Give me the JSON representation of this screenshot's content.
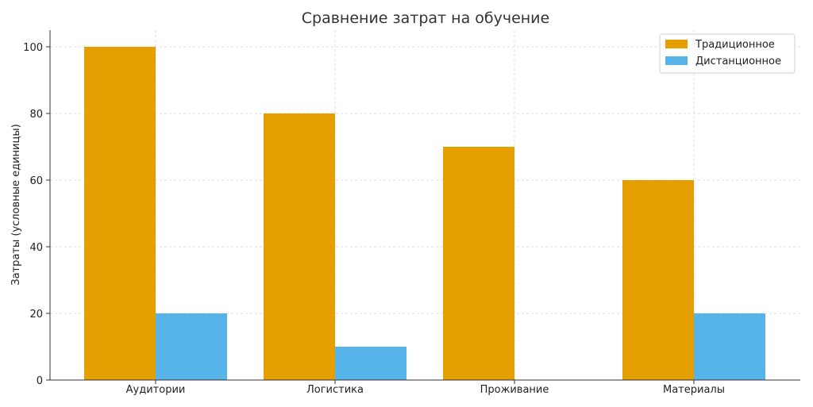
{
  "chart_data": {
    "type": "bar",
    "title": "Сравнение затрат на обучение",
    "xlabel": "",
    "ylabel": "Затраты (условные единицы)",
    "categories": [
      "Аудитории",
      "Логистика",
      "Проживание",
      "Материалы"
    ],
    "series": [
      {
        "name": "Традиционное",
        "color": "#E69F00",
        "values": [
          100,
          80,
          70,
          60
        ]
      },
      {
        "name": "Дистанционное",
        "color": "#56B4E9",
        "values": [
          20,
          10,
          0,
          20
        ]
      }
    ],
    "ylim": [
      0,
      105
    ],
    "yticks": [
      0,
      20,
      40,
      60,
      80,
      100
    ],
    "grid": true,
    "legend_position": "top-right"
  }
}
